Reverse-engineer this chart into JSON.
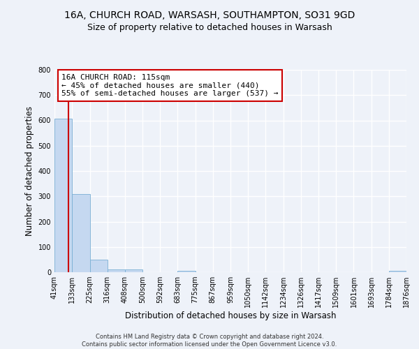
{
  "title": "16A, CHURCH ROAD, WARSASH, SOUTHAMPTON, SO31 9GD",
  "subtitle": "Size of property relative to detached houses in Warsash",
  "xlabel": "Distribution of detached houses by size in Warsash",
  "ylabel": "Number of detached properties",
  "bin_edges": [
    41,
    133,
    225,
    316,
    408,
    500,
    592,
    683,
    775,
    867,
    959,
    1050,
    1142,
    1234,
    1326,
    1417,
    1509,
    1601,
    1693,
    1784,
    1876
  ],
  "bin_labels": [
    "41sqm",
    "133sqm",
    "225sqm",
    "316sqm",
    "408sqm",
    "500sqm",
    "592sqm",
    "683sqm",
    "775sqm",
    "867sqm",
    "959sqm",
    "1050sqm",
    "1142sqm",
    "1234sqm",
    "1326sqm",
    "1417sqm",
    "1509sqm",
    "1601sqm",
    "1693sqm",
    "1784sqm",
    "1876sqm"
  ],
  "bar_heights": [
    606,
    310,
    49,
    11,
    10,
    0,
    0,
    5,
    0,
    0,
    0,
    0,
    0,
    0,
    0,
    0,
    0,
    0,
    0,
    5
  ],
  "bar_color": "#c5d8f0",
  "bar_edge_color": "#7aafd4",
  "property_size": 115,
  "vline_color": "#cc0000",
  "annotation_text": "16A CHURCH ROAD: 115sqm\n← 45% of detached houses are smaller (440)\n55% of semi-detached houses are larger (537) →",
  "annotation_box_color": "#ffffff",
  "annotation_box_edge_color": "#cc0000",
  "ylim": [
    0,
    800
  ],
  "yticks": [
    0,
    100,
    200,
    300,
    400,
    500,
    600,
    700,
    800
  ],
  "footer_line1": "Contains HM Land Registry data © Crown copyright and database right 2024.",
  "footer_line2": "Contains public sector information licensed under the Open Government Licence v3.0.",
  "bg_color": "#eef2f9",
  "plot_bg_color": "#eef2f9",
  "grid_color": "#ffffff",
  "title_fontsize": 10,
  "subtitle_fontsize": 9,
  "tick_label_fontsize": 7,
  "axis_label_fontsize": 8.5,
  "annotation_fontsize": 8,
  "footer_fontsize": 6
}
